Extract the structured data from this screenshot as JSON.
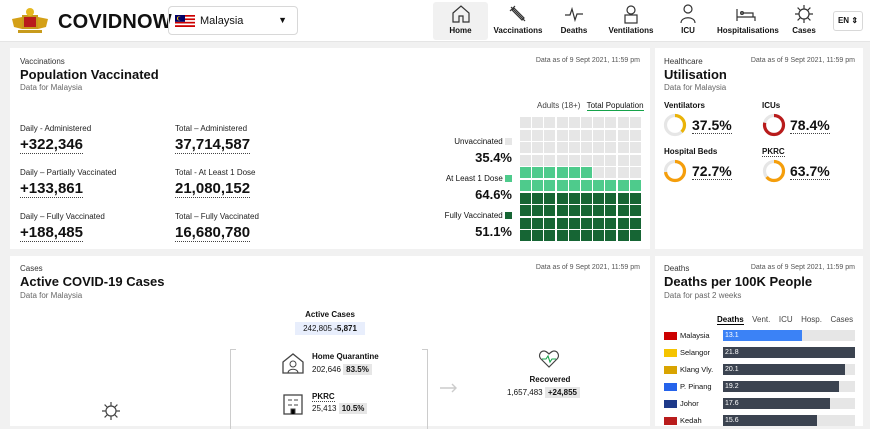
{
  "header": {
    "brand": "COVIDNOW",
    "country": "Malaysia",
    "lang": "EN",
    "nav": [
      {
        "label": "Home",
        "icon": "home-icon"
      },
      {
        "label": "Vaccinations",
        "icon": "syringe-icon"
      },
      {
        "label": "Deaths",
        "icon": "pulse-icon"
      },
      {
        "label": "Ventilations",
        "icon": "ventilator-icon"
      },
      {
        "label": "ICU",
        "icon": "doctor-icon"
      },
      {
        "label": "Hospitalisations",
        "icon": "bed-icon"
      },
      {
        "label": "Cases",
        "icon": "virus-icon"
      }
    ]
  },
  "vaccinations": {
    "category": "Vaccinations",
    "title": "Population Vaccinated",
    "subtitle": "Data for Malaysia",
    "date": "Data as of 9 Sept 2021, 11:59 pm",
    "toggle": {
      "adults": "Adults (18+)",
      "total": "Total Population"
    },
    "stats": {
      "daily_admin_label": "Daily - Administered",
      "daily_admin": "+322,346",
      "total_admin_label": "Total – Administered",
      "total_admin": "37,714,587",
      "daily_partial_label": "Daily – Partially Vaccinated",
      "daily_partial": "+133,861",
      "total_dose_label": "Total - At Least 1 Dose",
      "total_dose": "21,080,152",
      "daily_full_label": "Daily – Fully Vaccinated",
      "daily_full": "+188,485",
      "total_full_label": "Total – Fully Vaccinated",
      "total_full": "16,680,780"
    },
    "legend": {
      "unvax_label": "Unvaccinated",
      "unvax": "35.4%",
      "dose_label": "At Least 1 Dose",
      "dose": "64.6%",
      "full_label": "Fully Vaccinated",
      "full": "51.1%"
    },
    "grid_rows": [
      0,
      0,
      0,
      0,
      1,
      1,
      2,
      2,
      2,
      2
    ],
    "colors": {
      "unvax": "#e6e6e6",
      "dose": "#4ecb8c",
      "full": "#166534"
    }
  },
  "healthcare": {
    "category": "Healthcare",
    "title": "Utilisation",
    "subtitle": "Data for Malaysia",
    "date": "Data as of 9 Sept 2021, 11:59 pm",
    "items": [
      {
        "label": "Ventilators",
        "value": "37.5%",
        "frac": 0.375,
        "color": "#eab308"
      },
      {
        "label": "ICUs",
        "value": "78.4%",
        "frac": 0.784,
        "color": "#b91c1c"
      },
      {
        "label": "Hospital Beds",
        "value": "72.7%",
        "frac": 0.727,
        "color": "#f59e0b"
      },
      {
        "label": "PKRC",
        "value": "63.7%",
        "frac": 0.637,
        "color": "#f59e0b"
      }
    ]
  },
  "cases": {
    "category": "Cases",
    "title": "Active COVID-19 Cases",
    "subtitle": "Data for Malaysia",
    "date": "Data as of 9 Sept 2021, 11:59 pm",
    "active_label": "Active Cases",
    "active_value": "242,805",
    "active_delta": "-5,871",
    "home_label": "Home Quarantine",
    "home_value": "202,646",
    "home_pct": "83.5%",
    "pkrc_label": "PKRC",
    "pkrc_value": "25,413",
    "pkrc_pct": "10.5%",
    "recovered_label": "Recovered",
    "recovered_value": "1,657,483",
    "recovered_delta": "+24,855"
  },
  "deaths": {
    "category": "Deaths",
    "title": "Deaths per 100K People",
    "subtitle": "Data for past 2 weeks",
    "date": "Data as of 9 Sept 2021, 11:59 pm",
    "tabs": [
      "Deaths",
      "Vent.",
      "ICU",
      "Hosp.",
      "Cases"
    ],
    "max": 21.8,
    "rows": [
      {
        "name": "Malaysia",
        "value": "13.1",
        "v": 13.1
      },
      {
        "name": "Selangor",
        "value": "21.8",
        "v": 21.8
      },
      {
        "name": "Klang Vly.",
        "value": "20.1",
        "v": 20.1
      },
      {
        "name": "P. Pinang",
        "value": "19.2",
        "v": 19.2
      },
      {
        "name": "Johor",
        "value": "17.6",
        "v": 17.6
      },
      {
        "name": "Kedah",
        "value": "15.6",
        "v": 15.6
      }
    ]
  }
}
